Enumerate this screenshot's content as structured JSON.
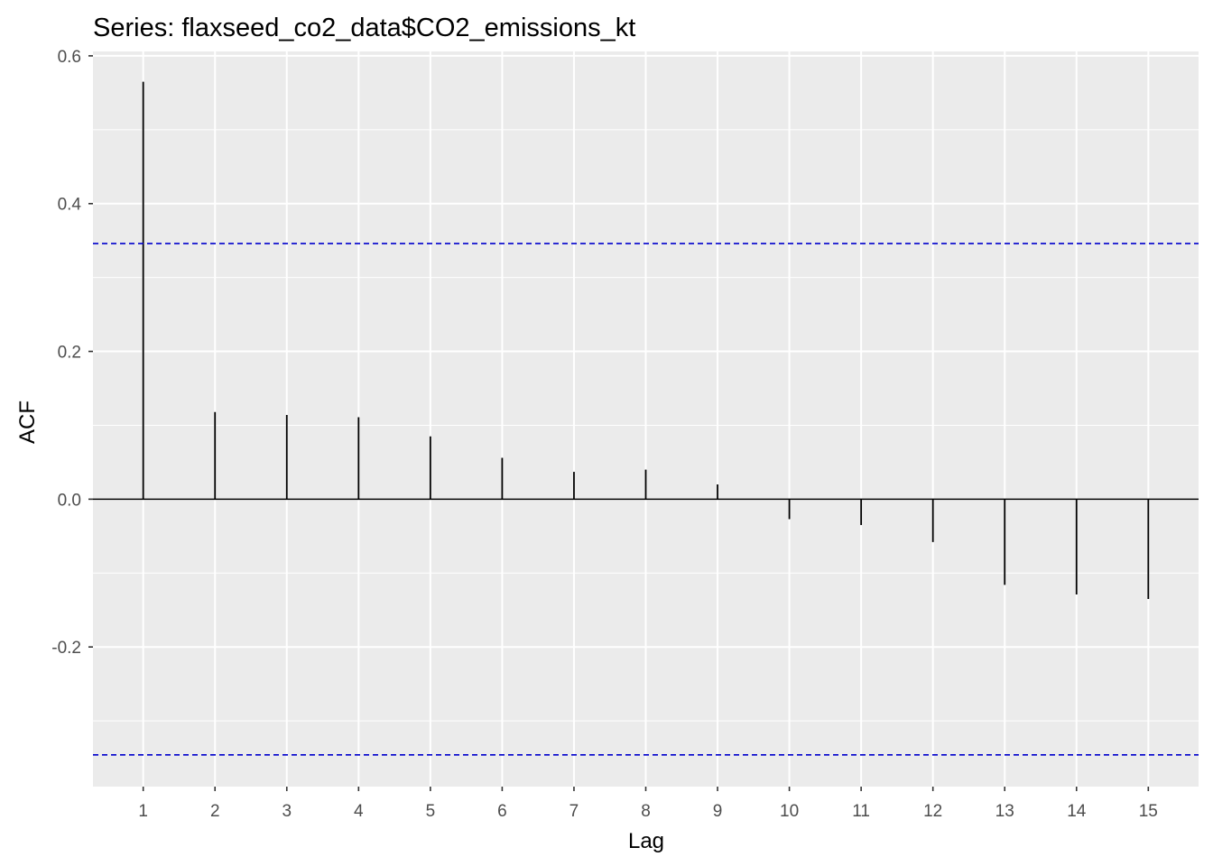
{
  "chart_data": {
    "type": "bar",
    "subtype": "acf-stem",
    "title": "Series: flaxseed_co2_data$CO2_emissions_kt",
    "xlabel": "Lag",
    "ylabel": "ACF",
    "x": [
      1,
      2,
      3,
      4,
      5,
      6,
      7,
      8,
      9,
      10,
      11,
      12,
      13,
      14,
      15
    ],
    "values": [
      0.565,
      0.118,
      0.114,
      0.111,
      0.085,
      0.056,
      0.037,
      0.04,
      0.02,
      -0.027,
      -0.035,
      -0.058,
      -0.116,
      -0.129,
      -0.135
    ],
    "confidence_band": [
      0.346,
      -0.346
    ],
    "xlim": [
      0.3,
      15.7
    ],
    "ylim": [
      -0.389,
      0.606
    ],
    "x_ticks": [
      1,
      2,
      3,
      4,
      5,
      6,
      7,
      8,
      9,
      10,
      11,
      12,
      13,
      14,
      15
    ],
    "y_ticks": [
      -0.2,
      0.0,
      0.2,
      0.4,
      0.6
    ],
    "y_tick_labels": [
      "-0.2",
      "0.0",
      "0.2",
      "0.4",
      "0.6"
    ],
    "grid": true,
    "colors": {
      "panel_background": "#ebebeb",
      "grid": "#ffffff",
      "stem": "#000000",
      "confidence_line": "#0000cc"
    }
  }
}
